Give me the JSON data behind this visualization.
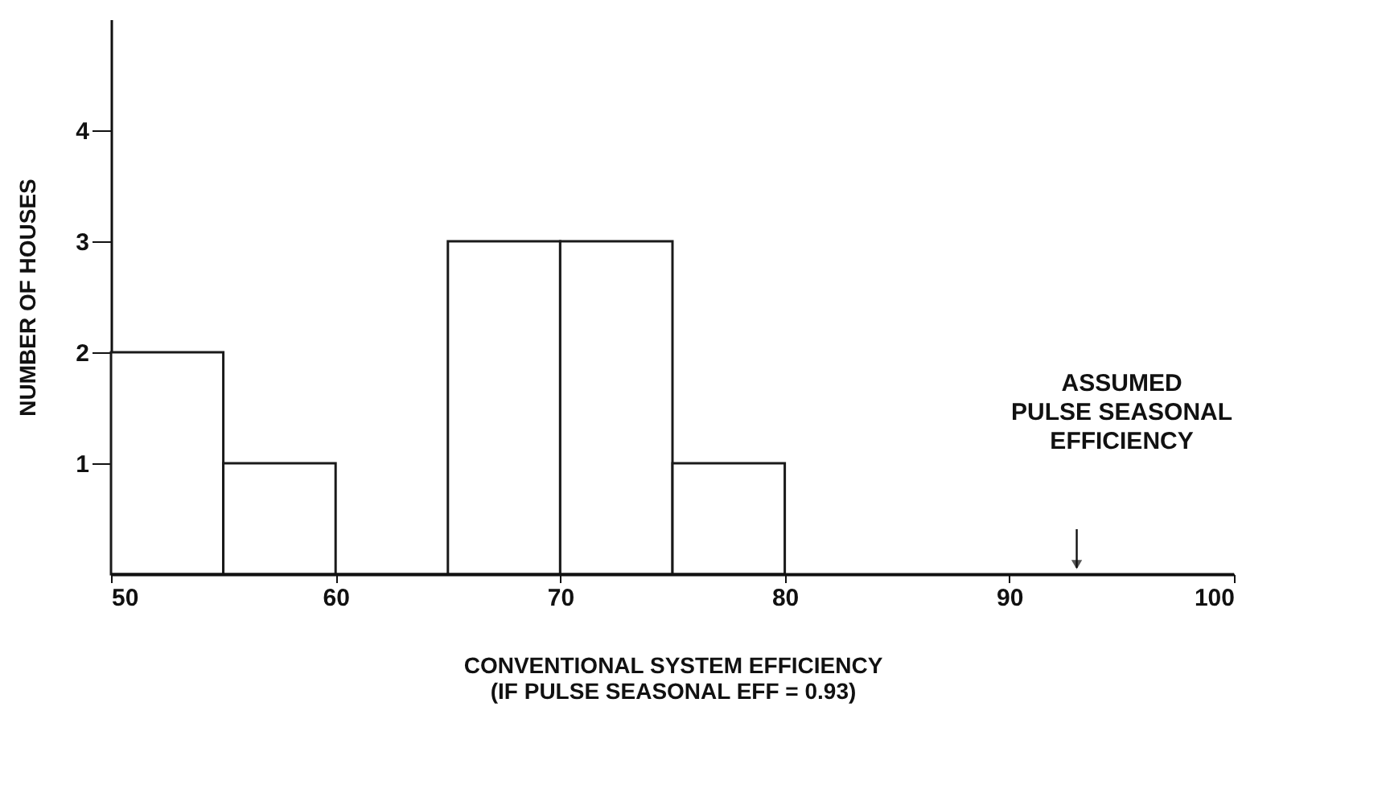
{
  "chart_data": {
    "type": "histogram",
    "xlabel": "CONVENTIONAL SYSTEM EFFICIENCY\n(IF PULSE SEASONAL EFF = 0.93)",
    "ylabel": "NUMBER OF HOUSES",
    "bins": [
      50,
      55,
      60,
      65,
      70,
      75,
      80
    ],
    "values": [
      2,
      1,
      0,
      3,
      3,
      1
    ],
    "color": "#1a1a1a",
    "xlim": [
      50,
      100
    ],
    "xticks": [
      50,
      60,
      70,
      80,
      90,
      100
    ],
    "ylim": [
      0,
      5
    ],
    "yticks": [
      1,
      2,
      3,
      4
    ],
    "grid": false,
    "annotations": [
      "ASSUMED\nPULSE SEASONAL\nEFFICIENCY"
    ]
  }
}
